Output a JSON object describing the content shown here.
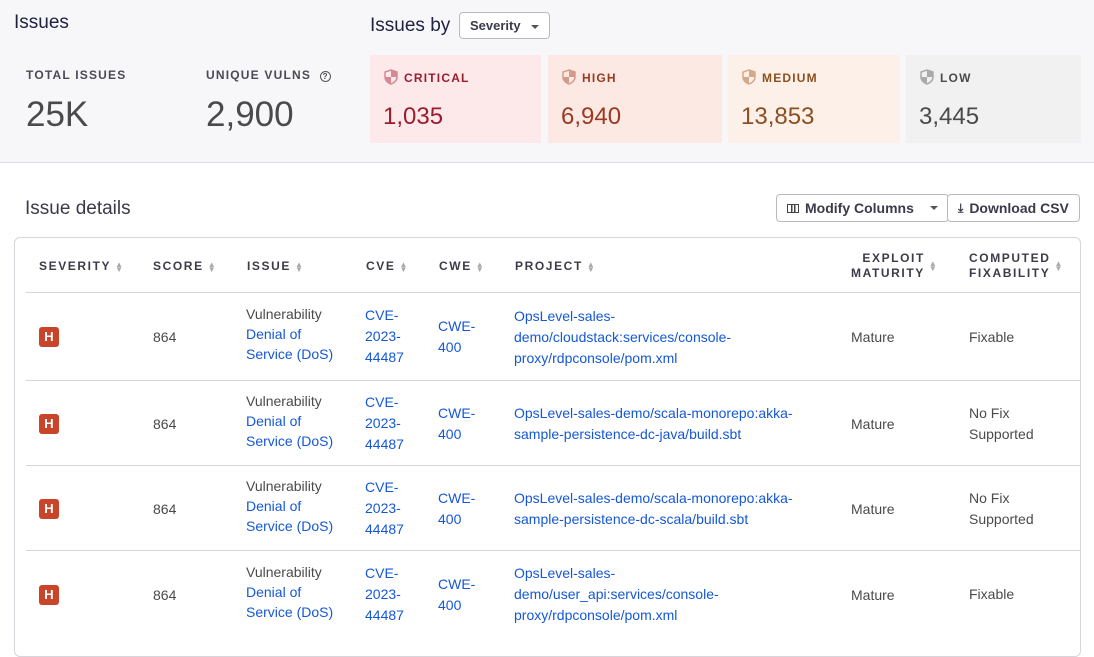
{
  "header": {
    "title": "Issues",
    "issues_by_label": "Issues by",
    "group_by_value": "Severity"
  },
  "stats": {
    "total_label": "TOTAL ISSUES",
    "total_value": "25K",
    "unique_label": "UNIQUE VULNS",
    "unique_value": "2,900"
  },
  "severity_cards": [
    {
      "label": "CRITICAL",
      "value": "1,035",
      "bg": "#fde9e9",
      "color": "#9b1c2e",
      "icon_color": "#d48a92"
    },
    {
      "label": "HIGH",
      "value": "6,940",
      "bg": "#fde9e4",
      "color": "#9a3a22",
      "icon_color": "#d49a8a"
    },
    {
      "label": "MEDIUM",
      "value": "13,853",
      "bg": "#fdf0e8",
      "color": "#8a5020",
      "icon_color": "#d4a88a"
    },
    {
      "label": "LOW",
      "value": "3,445",
      "bg": "#f1f1f1",
      "color": "#4a4a4a",
      "icon_color": "#aaaaaa"
    }
  ],
  "details": {
    "title": "Issue details",
    "modify_columns": "Modify Columns",
    "download_csv": "Download CSV"
  },
  "columns": {
    "severity": "SEVERITY",
    "score": "SCORE",
    "issue": "ISSUE",
    "cve": "CVE",
    "cwe": "CWE",
    "project": "PROJECT",
    "exploit_1": "EXPLOIT",
    "exploit_2": "MATURITY",
    "fix_1": "COMPUTED",
    "fix_2": "FIXABILITY"
  },
  "rows": [
    {
      "severity": "H",
      "score": "864",
      "issue_type": "Vulnerability",
      "issue_1": "Denial of",
      "issue_2": "Service (DoS)",
      "cve_1": "CVE-",
      "cve_2": "2023-",
      "cve_3": "44487",
      "cwe_1": "CWE-",
      "cwe_2": "400",
      "project_1": "OpsLevel-sales-",
      "project_2": "demo/cloudstack:services/console-",
      "project_3": "proxy/rdpconsole/pom.xml",
      "exploit": "Mature",
      "fix_1": "Fixable",
      "fix_2": ""
    },
    {
      "severity": "H",
      "score": "864",
      "issue_type": "Vulnerability",
      "issue_1": "Denial of",
      "issue_2": "Service (DoS)",
      "cve_1": "CVE-",
      "cve_2": "2023-",
      "cve_3": "44487",
      "cwe_1": "CWE-",
      "cwe_2": "400",
      "project_1": "OpsLevel-sales-demo/scala-monorepo:akka-",
      "project_2": "sample-persistence-dc-java/build.sbt",
      "project_3": "",
      "exploit": "Mature",
      "fix_1": "No Fix",
      "fix_2": "Supported"
    },
    {
      "severity": "H",
      "score": "864",
      "issue_type": "Vulnerability",
      "issue_1": "Denial of",
      "issue_2": "Service (DoS)",
      "cve_1": "CVE-",
      "cve_2": "2023-",
      "cve_3": "44487",
      "cwe_1": "CWE-",
      "cwe_2": "400",
      "project_1": "OpsLevel-sales-demo/scala-monorepo:akka-",
      "project_2": "sample-persistence-dc-scala/build.sbt",
      "project_3": "",
      "exploit": "Mature",
      "fix_1": "No Fix",
      "fix_2": "Supported"
    },
    {
      "severity": "H",
      "score": "864",
      "issue_type": "Vulnerability",
      "issue_1": "Denial of",
      "issue_2": "Service (DoS)",
      "cve_1": "CVE-",
      "cve_2": "2023-",
      "cve_3": "44487",
      "cwe_1": "CWE-",
      "cwe_2": "400",
      "project_1": "OpsLevel-sales-",
      "project_2": "demo/user_api:services/console-",
      "project_3": "proxy/rdpconsole/pom.xml",
      "exploit": "Mature",
      "fix_1": "Fixable",
      "fix_2": ""
    }
  ]
}
